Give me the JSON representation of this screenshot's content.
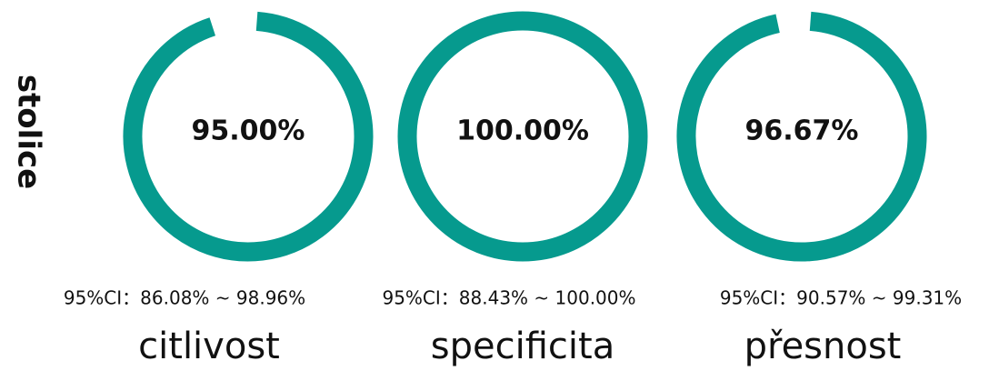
{
  "chart_data": {
    "type": "donut",
    "ylabel": "stolice",
    "categories": [
      "citlivost",
      "specificita",
      "přesnost"
    ],
    "values": [
      95,
      100,
      96.67
    ],
    "value_labels": [
      "95.00%",
      "100.00%",
      "96.67%"
    ],
    "ci_labels": [
      "95%CI：86.08% ~ 98.96%",
      "95%CI：88.43% ~ 100.00%",
      "95%CI：90.57% ~ 99.31%"
    ],
    "color": "#069a8e",
    "ylim": [
      0,
      100
    ]
  }
}
